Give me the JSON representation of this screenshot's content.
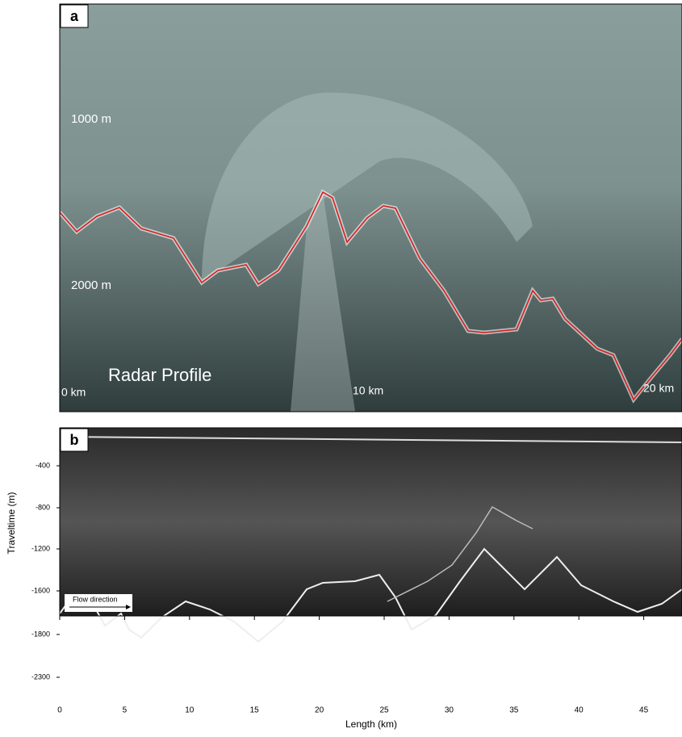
{
  "panel_a": {
    "label": "a",
    "texts": [
      "1000 m",
      "2000 m",
      "Radar Profile",
      "0 km",
      "10 km",
      "20 km"
    ]
  },
  "panel_b": {
    "label": "b",
    "flow_label": "Flow direction",
    "y_axis_label": "Traveltime (m)",
    "x_axis_label": "Length (km)",
    "yticks": [
      "-400",
      "-800",
      "-1200",
      "-1600",
      "-1800",
      "-2300"
    ],
    "xticks": [
      "0",
      "5",
      "10",
      "15",
      "20",
      "25",
      "30",
      "35",
      "40",
      "45"
    ]
  }
}
